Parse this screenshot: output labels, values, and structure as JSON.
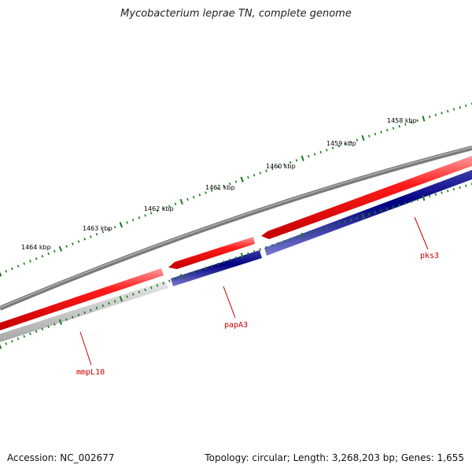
{
  "title": "Mycobacterium leprae TN, complete genome",
  "footer": {
    "accession": "Accession: NC_002677",
    "stats": "Topology: circular; Length: 3,268,203 bp; Genes: 1,655"
  },
  "scale_labels": [
    "1458 kbp",
    "1459 kbp",
    "1460 kbp",
    "1461 kbp",
    "1462 kbp",
    "1463 kbp",
    "1464 kbp"
  ],
  "genes": [
    {
      "name": "pks3",
      "strand": "reverse"
    },
    {
      "name": "papA3",
      "strand": "forward"
    },
    {
      "name": "mmpL10",
      "strand": "forward"
    }
  ],
  "colors": {
    "backbone": "#7a7a7a",
    "forward_cds": "#ff0000",
    "reverse_cds": "#000080",
    "other_cds": "#c8c8c8",
    "ticks": "#1a7a1a",
    "label": "#cc0000"
  }
}
